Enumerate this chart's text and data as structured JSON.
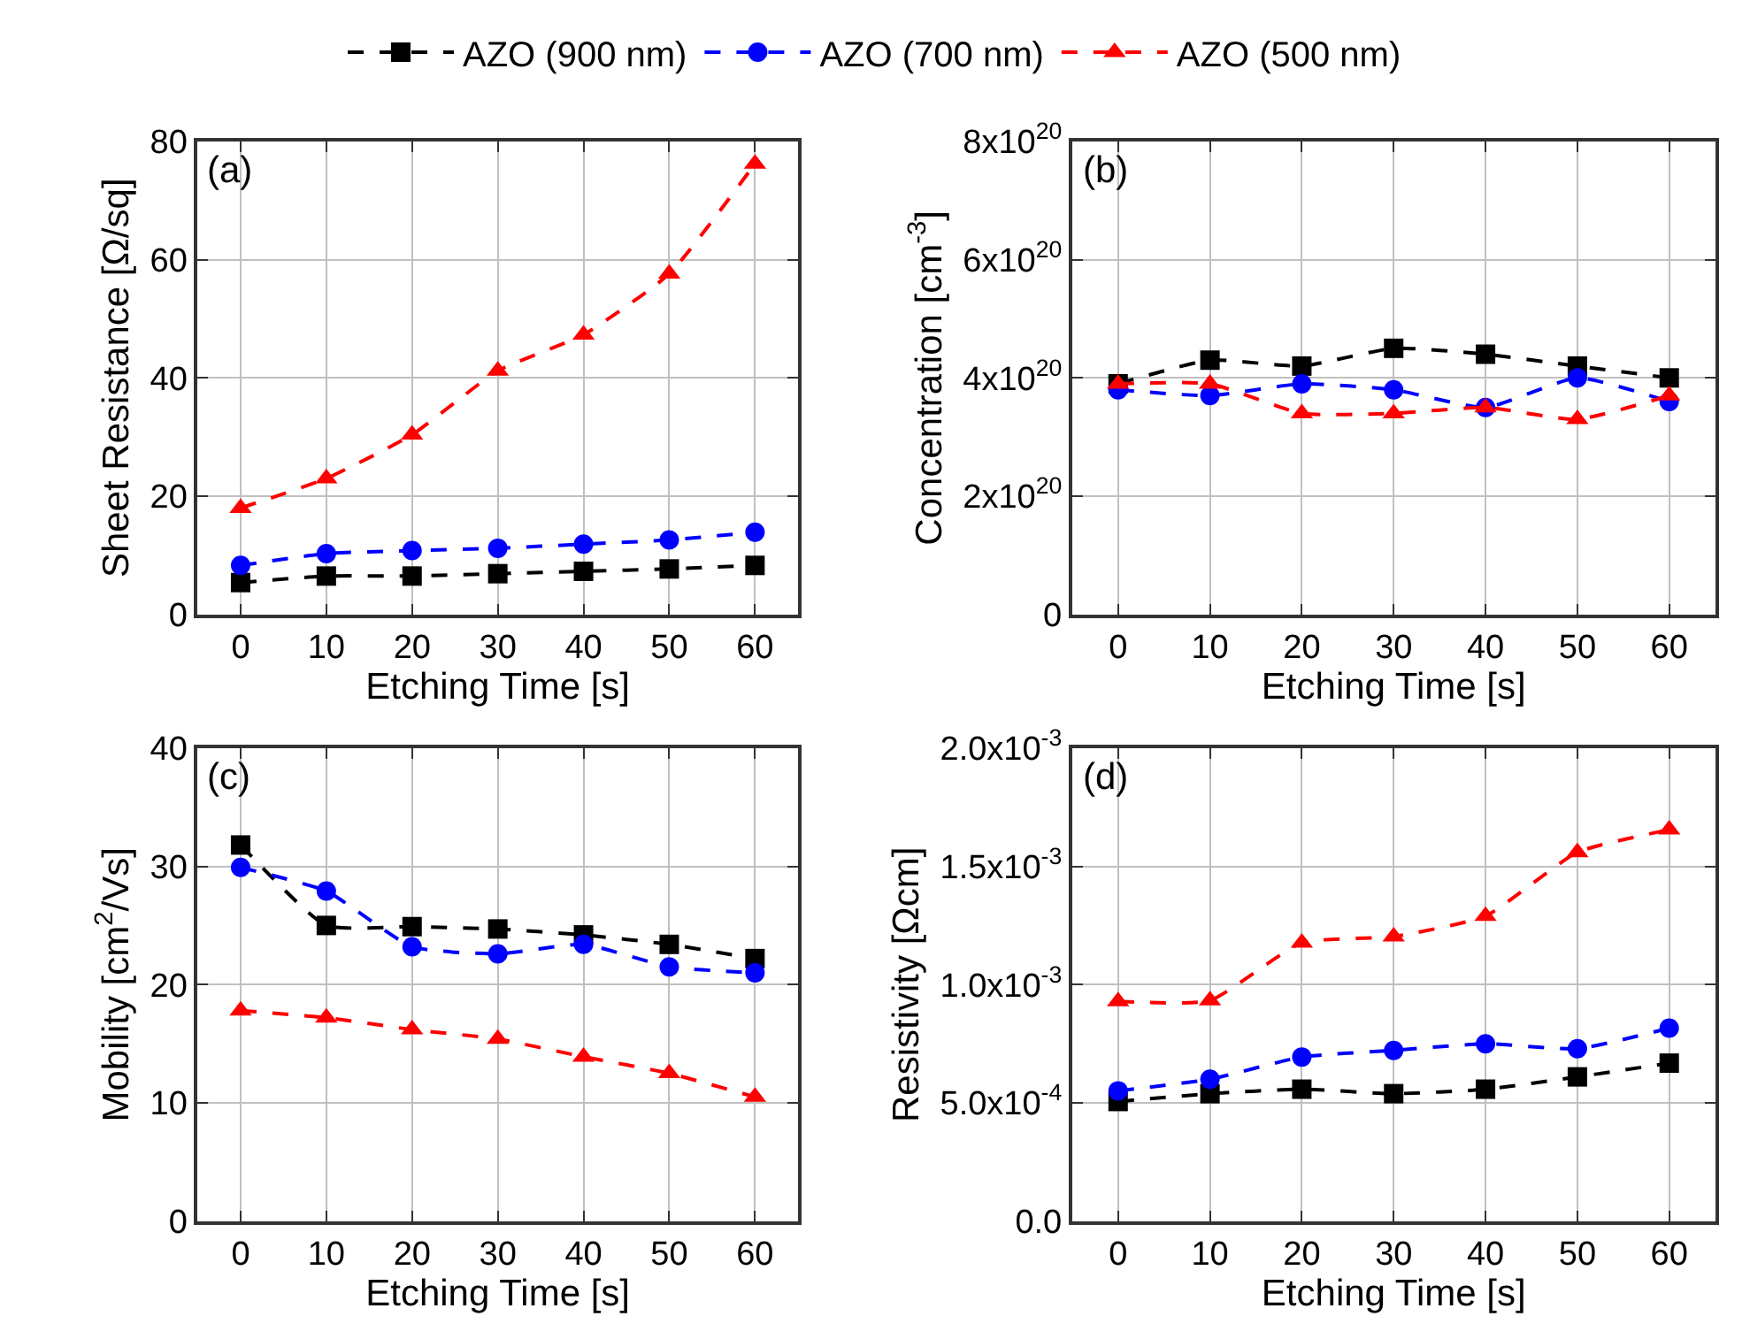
{
  "chart_data": [
    {
      "type": "line",
      "xlabel": "Etching Time [s]",
      "ylabel": "Sheet Resistance [Ω/sq]",
      "annotations": [
        "(a)"
      ],
      "x": [
        0,
        10,
        20,
        30,
        40,
        50,
        60
      ],
      "xlim": [
        -5,
        65
      ],
      "xticks": [
        0,
        10,
        20,
        30,
        40,
        50,
        60
      ],
      "ylim": [
        0,
        80
      ],
      "yticks": [
        0,
        20,
        40,
        60,
        80
      ],
      "grid": true,
      "legend": "top",
      "line_style": "dashed",
      "series": [
        {
          "name": "AZO (900 nm)",
          "color": "#000000",
          "marker": "square",
          "values": [
            5.4,
            6.5,
            6.5,
            6.9,
            7.3,
            7.7,
            8.3
          ]
        },
        {
          "name": "AZO (700 nm)",
          "color": "#0000ff",
          "marker": "circle",
          "values": [
            8.3,
            10.3,
            10.8,
            11.2,
            11.9,
            12.6,
            13.9
          ]
        },
        {
          "name": "AZO (500 nm)",
          "color": "#ff0000",
          "marker": "triangle",
          "values": [
            18.0,
            23.0,
            30.4,
            41.2,
            47.3,
            57.6,
            76.2
          ]
        }
      ]
    },
    {
      "type": "line",
      "xlabel": "Etching Time [s]",
      "ylabel": "Concentration [cm$^{-3}$]",
      "annotations": [
        "(b)"
      ],
      "x": [
        0,
        10,
        20,
        30,
        40,
        50,
        60
      ],
      "xlim": [
        -5,
        65
      ],
      "xticks": [
        0,
        10,
        20,
        30,
        40,
        50,
        60
      ],
      "ylim": [
        0,
        8e+20
      ],
      "yticks": [
        0,
        {
          "value": 2e+20,
          "label": "2x10$^{20}$"
        },
        {
          "value": 4e+20,
          "label": "4x10$^{20}$"
        },
        {
          "value": 6e+20,
          "label": "6x10$^{20}$"
        },
        {
          "value": 8e+20,
          "label": "8x10$^{20}$"
        }
      ],
      "grid": true,
      "line_style": "dashed",
      "series": [
        {
          "color": "#000000",
          "marker": "square",
          "values": [
            3.9e+20,
            4.3e+20,
            4.2e+20,
            4.5e+20,
            4.4e+20,
            4.2e+20,
            4e+20
          ]
        },
        {
          "color": "#0000ff",
          "marker": "circle",
          "values": [
            3.8e+20,
            3.7e+20,
            3.9e+20,
            3.8e+20,
            3.5e+20,
            4e+20,
            3.6e+20
          ]
        },
        {
          "color": "#ff0000",
          "marker": "triangle",
          "values": [
            3.9e+20,
            3.9e+20,
            3.4e+20,
            3.4e+20,
            3.5e+20,
            3.3e+20,
            3.7e+20
          ]
        }
      ]
    },
    {
      "type": "line",
      "xlabel": "Etching Time [s]",
      "ylabel": "Mobility [cm$^{2}$/Vs]",
      "annotations": [
        "(c)"
      ],
      "x": [
        0,
        10,
        20,
        30,
        40,
        50,
        60
      ],
      "xlim": [
        -5,
        65
      ],
      "xticks": [
        0,
        10,
        20,
        30,
        40,
        50,
        60
      ],
      "ylim": [
        0,
        40
      ],
      "yticks": [
        0,
        10,
        20,
        30,
        40
      ],
      "grid": true,
      "line_style": "dashed",
      "series": [
        {
          "color": "#000000",
          "marker": "square",
          "values": [
            31.8,
            25.0,
            24.9,
            24.7,
            24.2,
            23.4,
            22.2
          ]
        },
        {
          "color": "#0000ff",
          "marker": "circle",
          "values": [
            29.9,
            27.9,
            23.2,
            22.6,
            23.4,
            21.5,
            21.0
          ]
        },
        {
          "color": "#ff0000",
          "marker": "triangle",
          "values": [
            17.8,
            17.2,
            16.2,
            15.4,
            13.9,
            12.5,
            10.5
          ]
        }
      ]
    },
    {
      "type": "line",
      "xlabel": "Etching Time [s]",
      "ylabel": "Resistivity [Ωcm]",
      "annotations": [
        "(d)"
      ],
      "x": [
        0,
        10,
        20,
        30,
        40,
        50,
        60
      ],
      "xlim": [
        -5,
        65
      ],
      "xticks": [
        0,
        10,
        20,
        30,
        40,
        50,
        60
      ],
      "ylim": [
        0,
        0.002
      ],
      "yticks": [
        {
          "value": 0,
          "label": "0.0"
        },
        {
          "value": 0.0005,
          "label": "5.0x10$^{-4}$"
        },
        {
          "value": 0.001,
          "label": "1.0x10$^{-3}$"
        },
        {
          "value": 0.0015,
          "label": "1.5x10$^{-3}$"
        },
        {
          "value": 0.002,
          "label": "2.0x10$^{-3}$"
        }
      ],
      "grid": true,
      "line_style": "dashed",
      "series": [
        {
          "color": "#000000",
          "marker": "square",
          "values": [
            0.000506,
            0.000539,
            0.000558,
            0.000539,
            0.000558,
            0.00061,
            0.000668
          ]
        },
        {
          "color": "#0000ff",
          "marker": "circle",
          "values": [
            0.000551,
            0.0006,
            0.000694,
            0.000722,
            0.00075,
            0.000729,
            0.000816
          ]
        },
        {
          "color": "#ff0000",
          "marker": "triangle",
          "values": [
            0.000929,
            0.000933,
            0.001177,
            0.001203,
            0.00129,
            0.001559,
            0.001655
          ]
        }
      ]
    }
  ]
}
